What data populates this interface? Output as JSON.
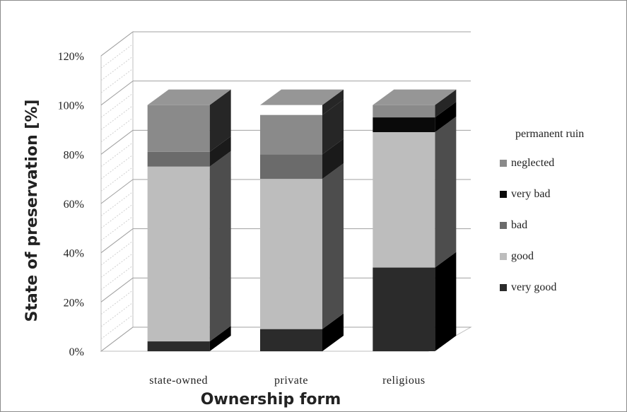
{
  "chart_data": {
    "type": "bar",
    "stacked": true,
    "three_d": true,
    "categories": [
      "state-owned",
      "private",
      "religious"
    ],
    "series": [
      {
        "name": "very good",
        "values": [
          4,
          9,
          34
        ],
        "color": "#2b2b2b",
        "side_color": "#000000",
        "top_color": "#3a3a3a"
      },
      {
        "name": "good",
        "values": [
          71,
          61,
          55
        ],
        "color": "#bdbdbd",
        "side_color": "#4d4d4d",
        "top_color": "#cccccc"
      },
      {
        "name": "bad",
        "values": [
          6,
          10,
          0
        ],
        "color": "#6b6b6b",
        "side_color": "#1a1a1a",
        "top_color": "#777777"
      },
      {
        "name": "very bad",
        "values": [
          0,
          0,
          6
        ],
        "color": "#0a0a0a",
        "side_color": "#000000",
        "top_color": "#1a1a1a"
      },
      {
        "name": "neglected",
        "values": [
          19,
          16,
          5
        ],
        "color": "#8a8a8a",
        "side_color": "#262626",
        "top_color": "#969696"
      },
      {
        "name": "permanent ruin",
        "values": [
          0,
          4,
          0
        ],
        "color": "#ffffff",
        "side_color": "#262626",
        "top_color": "#969696"
      }
    ],
    "legend_title": "permanent ruin",
    "legend_items": [
      "neglected",
      "very bad",
      "bad",
      "good",
      "very good"
    ],
    "yticks": [
      "0%",
      "20%",
      "40%",
      "60%",
      "80%",
      "100%",
      "120%"
    ],
    "ylim": [
      0,
      120
    ],
    "ylabel": "State of preservation [%]",
    "xlabel": "Ownership form",
    "grid": true,
    "legend_position": "right"
  }
}
